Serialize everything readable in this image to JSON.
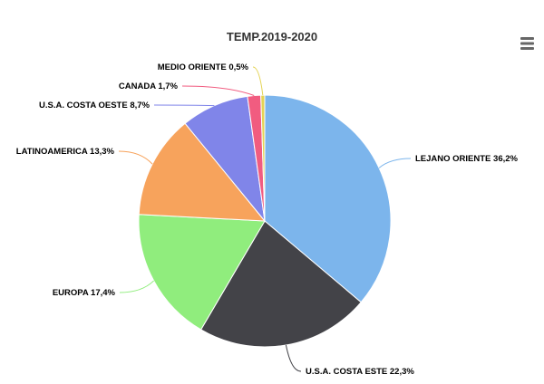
{
  "chart_data": {
    "type": "pie",
    "title": "TEMP.2019-2020",
    "slices": [
      {
        "label": "LEJANO ORIENTE",
        "value_text": "36,2%",
        "value": 36.2,
        "color": "#7cb5ec"
      },
      {
        "label": "U.S.A. COSTA ESTE",
        "value_text": "22,3%",
        "value": 22.3,
        "color": "#434348"
      },
      {
        "label": "EUROPA",
        "value_text": "17,4%",
        "value": 17.4,
        "color": "#90ed7d"
      },
      {
        "label": "LATINOAMERICA",
        "value_text": "13,3%",
        "value": 13.3,
        "color": "#f7a35c"
      },
      {
        "label": "U.S.A. COSTA OESTE",
        "value_text": "8,7%",
        "value": 8.7,
        "color": "#8085e9"
      },
      {
        "label": "CANADA",
        "value_text": "1,7%",
        "value": 1.7,
        "color": "#f15c80"
      },
      {
        "label": "MEDIO ORIENTE",
        "value_text": "0,5%",
        "value": 0.5,
        "color": "#e4d354"
      }
    ]
  },
  "toolbar": {
    "menu_icon": "hamburger-menu-icon"
  }
}
